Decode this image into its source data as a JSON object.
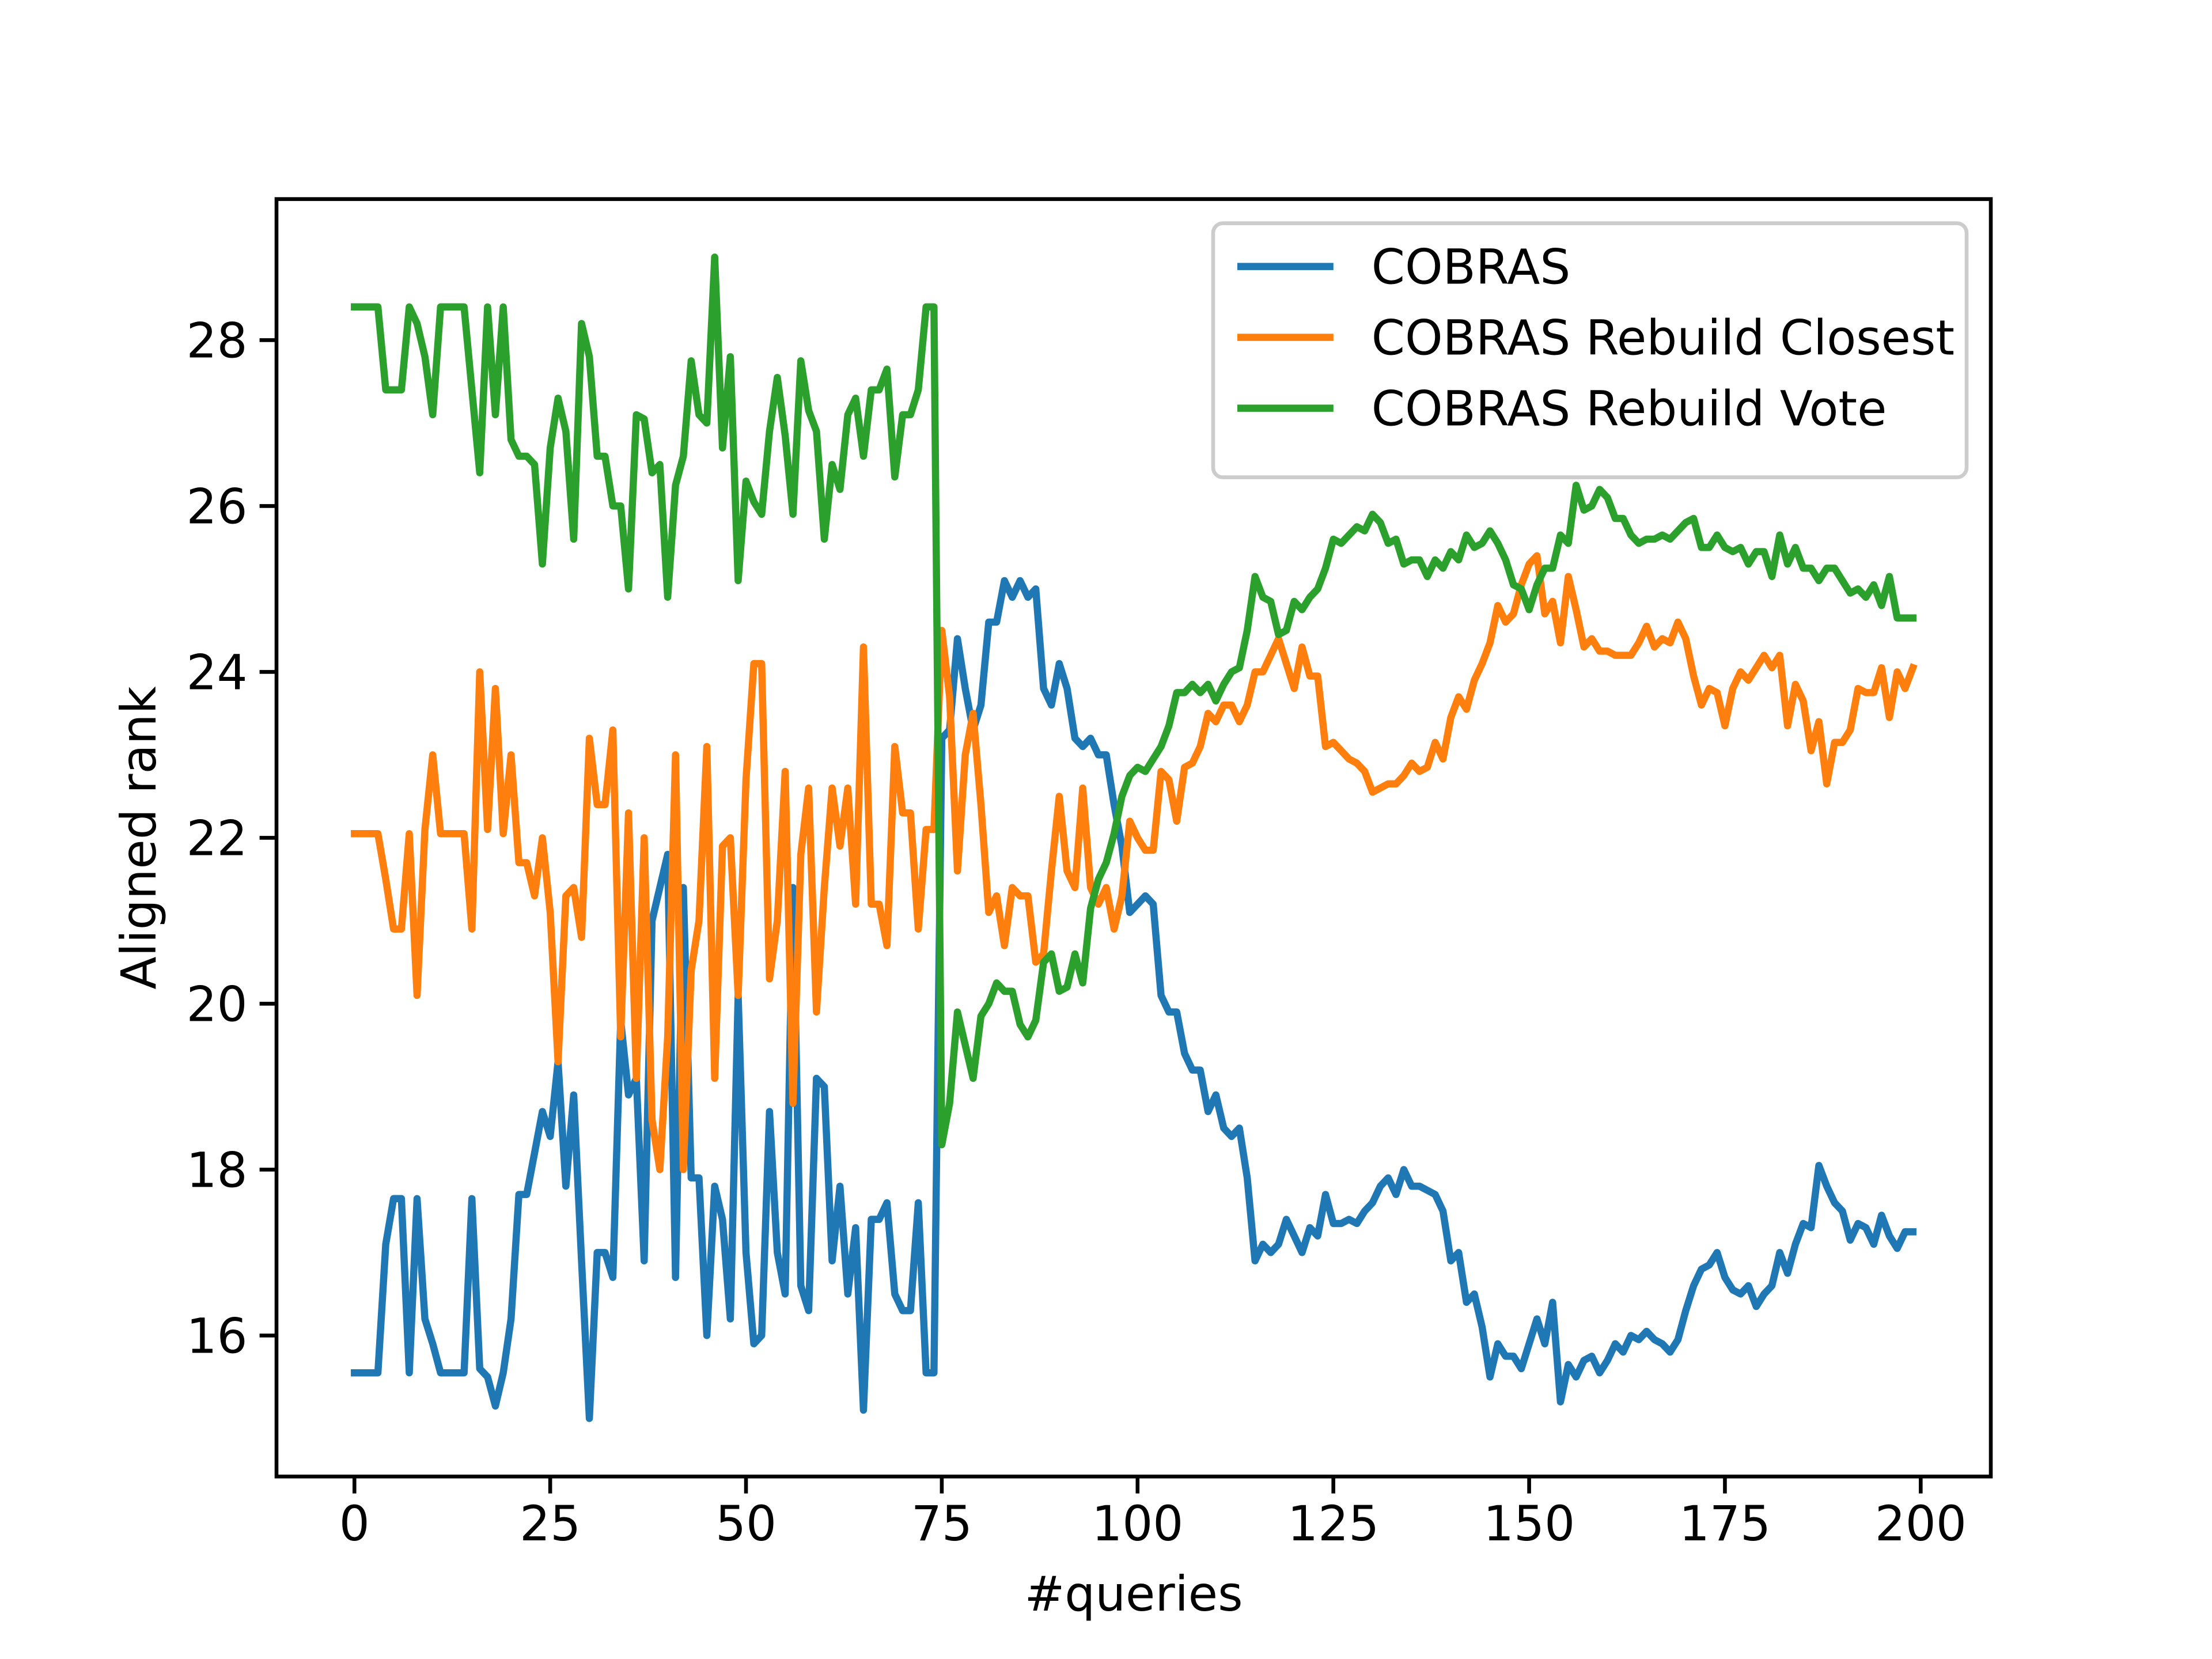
{
  "chart_data": {
    "type": "line",
    "xlabel": "#queries",
    "ylabel": "Aligned rank",
    "x": [
      0,
      1,
      2,
      3,
      4,
      5,
      6,
      7,
      8,
      9,
      10,
      11,
      12,
      13,
      14,
      15,
      16,
      17,
      18,
      19,
      20,
      21,
      22,
      23,
      24,
      25,
      26,
      27,
      28,
      29,
      30,
      31,
      32,
      33,
      34,
      35,
      36,
      37,
      38,
      39,
      40,
      41,
      42,
      43,
      44,
      45,
      46,
      47,
      48,
      49,
      50,
      51,
      52,
      53,
      54,
      55,
      56,
      57,
      58,
      59,
      60,
      61,
      62,
      63,
      64,
      65,
      66,
      67,
      68,
      69,
      70,
      71,
      72,
      73,
      74,
      75,
      76,
      77,
      78,
      79,
      80,
      81,
      82,
      83,
      84,
      85,
      86,
      87,
      88,
      89,
      90,
      91,
      92,
      93,
      94,
      95,
      96,
      97,
      98,
      99,
      100,
      101,
      102,
      103,
      104,
      105,
      106,
      107,
      108,
      109,
      110,
      111,
      112,
      113,
      114,
      115,
      116,
      117,
      118,
      119,
      120,
      121,
      122,
      123,
      124,
      125,
      126,
      127,
      128,
      129,
      130,
      131,
      132,
      133,
      134,
      135,
      136,
      137,
      138,
      139,
      140,
      141,
      142,
      143,
      144,
      145,
      146,
      147,
      148,
      149,
      150,
      151,
      152,
      153,
      154,
      155,
      156,
      157,
      158,
      159,
      160,
      161,
      162,
      163,
      164,
      165,
      166,
      167,
      168,
      169,
      170,
      171,
      172,
      173,
      174,
      175,
      176,
      177,
      178,
      179,
      180,
      181,
      182,
      183,
      184,
      185,
      186,
      187,
      188,
      189,
      190,
      191,
      192,
      193,
      194,
      195,
      196,
      197,
      198,
      199
    ],
    "series": [
      {
        "name": "COBRAS",
        "color": "#1f77b4",
        "values": [
          15.55,
          15.55,
          15.55,
          15.55,
          17.1,
          17.65,
          17.65,
          15.55,
          17.65,
          16.2,
          15.9,
          15.55,
          15.55,
          15.55,
          15.55,
          17.65,
          15.6,
          15.5,
          15.15,
          15.55,
          16.2,
          17.7,
          17.7,
          18.2,
          18.7,
          18.4,
          19.3,
          17.8,
          18.9,
          16.9,
          15.0,
          17.0,
          17.0,
          16.7,
          19.8,
          18.9,
          19.1,
          16.9,
          21.0,
          21.4,
          21.8,
          16.7,
          21.4,
          17.9,
          17.9,
          16.0,
          17.8,
          17.4,
          16.2,
          20.1,
          17.0,
          15.9,
          16.0,
          18.7,
          17.0,
          16.5,
          21.4,
          16.6,
          16.3,
          19.1,
          19.0,
          16.9,
          17.8,
          16.5,
          17.3,
          15.1,
          17.4,
          17.4,
          17.6,
          16.5,
          16.3,
          16.3,
          17.6,
          15.55,
          15.55,
          23.2,
          23.3,
          24.4,
          23.8,
          23.3,
          23.6,
          24.6,
          24.6,
          25.1,
          24.9,
          25.1,
          24.9,
          25.0,
          23.8,
          23.6,
          24.1,
          23.8,
          23.2,
          23.1,
          23.2,
          23.0,
          23.0,
          22.4,
          21.9,
          21.1,
          21.2,
          21.3,
          21.2,
          20.1,
          19.9,
          19.9,
          19.4,
          19.2,
          19.2,
          18.7,
          18.9,
          18.5,
          18.4,
          18.5,
          17.9,
          16.9,
          17.1,
          17.0,
          17.1,
          17.4,
          17.2,
          17.0,
          17.3,
          17.2,
          17.7,
          17.35,
          17.35,
          17.4,
          17.35,
          17.5,
          17.6,
          17.8,
          17.9,
          17.7,
          18.0,
          17.8,
          17.8,
          17.75,
          17.7,
          17.5,
          16.9,
          17.0,
          16.4,
          16.5,
          16.1,
          15.5,
          15.9,
          15.75,
          15.75,
          15.6,
          15.9,
          16.2,
          15.9,
          16.4,
          15.2,
          15.65,
          15.5,
          15.7,
          15.75,
          15.55,
          15.7,
          15.9,
          15.8,
          16.0,
          15.95,
          16.05,
          15.95,
          15.9,
          15.8,
          15.95,
          16.3,
          16.6,
          16.8,
          16.85,
          17.0,
          16.7,
          16.55,
          16.5,
          16.6,
          16.35,
          16.5,
          16.6,
          17.0,
          16.75,
          17.1,
          17.35,
          17.3,
          18.05,
          17.8,
          17.6,
          17.5,
          17.15,
          17.35,
          17.3,
          17.1,
          17.45,
          17.2,
          17.05,
          17.25,
          17.25
        ]
      },
      {
        "name": "COBRAS Rebuild Closest",
        "color": "#ff7f0e",
        "values": [
          22.05,
          22.05,
          22.05,
          22.05,
          21.5,
          20.9,
          20.9,
          22.05,
          20.1,
          22.1,
          23.0,
          22.05,
          22.05,
          22.05,
          22.05,
          20.9,
          24.0,
          22.1,
          23.8,
          22.05,
          23.0,
          21.7,
          21.7,
          21.3,
          22.0,
          21.1,
          19.3,
          21.3,
          21.4,
          20.8,
          23.2,
          22.4,
          22.4,
          23.3,
          19.6,
          22.3,
          19.1,
          22.0,
          18.6,
          18.0,
          19.6,
          23.0,
          18.0,
          20.4,
          21.0,
          23.1,
          19.1,
          21.9,
          22.0,
          20.1,
          22.7,
          24.1,
          24.1,
          20.3,
          21.0,
          22.8,
          18.8,
          21.8,
          22.6,
          19.9,
          21.4,
          22.6,
          21.9,
          22.6,
          21.2,
          24.3,
          21.2,
          21.2,
          20.7,
          23.1,
          22.3,
          22.3,
          20.9,
          22.1,
          22.1,
          24.5,
          23.7,
          21.6,
          23.0,
          23.5,
          22.4,
          21.1,
          21.3,
          20.7,
          21.4,
          21.3,
          21.3,
          20.5,
          20.6,
          21.6,
          22.5,
          21.6,
          21.4,
          22.6,
          21.4,
          21.2,
          21.4,
          20.9,
          21.3,
          22.2,
          22.0,
          21.85,
          21.85,
          22.8,
          22.7,
          22.2,
          22.85,
          22.9,
          23.1,
          23.5,
          23.4,
          23.6,
          23.6,
          23.4,
          23.6,
          24.0,
          24.0,
          24.2,
          24.4,
          24.1,
          23.8,
          24.3,
          23.95,
          23.95,
          23.1,
          23.15,
          23.05,
          22.95,
          22.9,
          22.8,
          22.55,
          22.6,
          22.65,
          22.65,
          22.75,
          22.9,
          22.8,
          22.85,
          23.15,
          22.95,
          23.45,
          23.7,
          23.55,
          23.9,
          24.1,
          24.35,
          24.8,
          24.6,
          24.7,
          25.05,
          25.3,
          25.4,
          24.7,
          24.85,
          24.35,
          25.15,
          24.75,
          24.3,
          24.4,
          24.25,
          24.25,
          24.2,
          24.2,
          24.2,
          24.35,
          24.55,
          24.3,
          24.4,
          24.35,
          24.6,
          24.4,
          23.95,
          23.6,
          23.8,
          23.75,
          23.35,
          23.8,
          24.0,
          23.9,
          24.05,
          24.2,
          24.05,
          24.2,
          23.35,
          23.85,
          23.65,
          23.05,
          23.4,
          22.65,
          23.15,
          23.15,
          23.3,
          23.8,
          23.75,
          23.75,
          24.05,
          23.45,
          24.0,
          23.8,
          24.05
        ]
      },
      {
        "name": "COBRAS Rebuild Vote",
        "color": "#2ca02c",
        "values": [
          28.4,
          28.4,
          28.4,
          28.4,
          27.4,
          27.4,
          27.4,
          28.4,
          28.2,
          27.8,
          27.1,
          28.4,
          28.4,
          28.4,
          28.4,
          27.4,
          26.4,
          28.4,
          27.1,
          28.4,
          26.8,
          26.6,
          26.6,
          26.5,
          25.3,
          26.7,
          27.3,
          26.9,
          25.6,
          28.2,
          27.8,
          26.6,
          26.6,
          26.0,
          26.0,
          25.0,
          27.1,
          27.05,
          26.4,
          26.5,
          24.9,
          26.25,
          26.6,
          27.75,
          27.1,
          27.0,
          29.0,
          26.7,
          27.8,
          25.1,
          26.3,
          26.05,
          25.9,
          26.9,
          27.55,
          26.85,
          25.9,
          27.75,
          27.15,
          26.9,
          25.6,
          26.5,
          26.2,
          27.1,
          27.3,
          26.6,
          27.4,
          27.4,
          27.65,
          26.35,
          27.1,
          27.1,
          27.4,
          28.4,
          28.4,
          18.3,
          18.8,
          19.9,
          19.5,
          19.1,
          19.85,
          20.0,
          20.25,
          20.15,
          20.15,
          19.75,
          19.6,
          19.8,
          20.5,
          20.6,
          20.15,
          20.2,
          20.6,
          20.25,
          21.15,
          21.5,
          21.7,
          22.05,
          22.5,
          22.75,
          22.85,
          22.8,
          22.95,
          23.1,
          23.35,
          23.75,
          23.75,
          23.85,
          23.75,
          23.85,
          23.65,
          23.85,
          24.0,
          24.05,
          24.5,
          25.15,
          24.9,
          24.85,
          24.45,
          24.5,
          24.85,
          24.75,
          24.9,
          25.0,
          25.25,
          25.6,
          25.55,
          25.65,
          25.75,
          25.7,
          25.9,
          25.8,
          25.55,
          25.6,
          25.3,
          25.35,
          25.35,
          25.15,
          25.35,
          25.25,
          25.45,
          25.35,
          25.65,
          25.5,
          25.55,
          25.7,
          25.55,
          25.35,
          25.05,
          25.0,
          24.75,
          25.05,
          25.25,
          25.25,
          25.65,
          25.55,
          26.25,
          25.95,
          26.0,
          26.2,
          26.1,
          25.85,
          25.85,
          25.65,
          25.55,
          25.6,
          25.6,
          25.65,
          25.6,
          25.7,
          25.8,
          25.85,
          25.5,
          25.5,
          25.65,
          25.5,
          25.45,
          25.5,
          25.3,
          25.45,
          25.45,
          25.15,
          25.65,
          25.3,
          25.5,
          25.25,
          25.25,
          25.1,
          25.25,
          25.25,
          25.1,
          24.95,
          25.0,
          24.9,
          25.05,
          24.8,
          25.15,
          24.65,
          24.65,
          24.65
        ]
      }
    ],
    "xlim": [
      -9.95,
      208.95
    ],
    "ylim": [
      14.3,
      29.7
    ],
    "xticks": [
      0,
      25,
      50,
      75,
      100,
      125,
      150,
      175,
      200
    ],
    "yticks": [
      16,
      18,
      20,
      22,
      24,
      26,
      28
    ],
    "grid": false,
    "legend": "upper right"
  }
}
